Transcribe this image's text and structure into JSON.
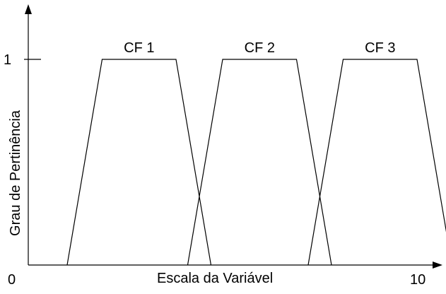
{
  "chart_data": {
    "type": "line",
    "xlabel": "Escala da Variável",
    "ylabel": "Grau de Pertinência",
    "x_min_label": "0",
    "x_max_label": "10",
    "y_tick_label": "1",
    "xlim": [
      0,
      10
    ],
    "ylim": [
      0,
      1
    ],
    "grid": false,
    "colors": {
      "lines": "#000000",
      "background": "#ffffff"
    },
    "series": [
      {
        "name": "CF 1",
        "points": [
          {
            "x": 1.0,
            "y": 0
          },
          {
            "x": 1.9,
            "y": 1
          },
          {
            "x": 3.8,
            "y": 1
          },
          {
            "x": 4.7,
            "y": 0
          }
        ]
      },
      {
        "name": "CF 2",
        "points": [
          {
            "x": 4.1,
            "y": 0
          },
          {
            "x": 5.0,
            "y": 1
          },
          {
            "x": 6.9,
            "y": 1
          },
          {
            "x": 7.8,
            "y": 0
          }
        ]
      },
      {
        "name": "CF 3",
        "points": [
          {
            "x": 7.2,
            "y": 0
          },
          {
            "x": 8.1,
            "y": 1
          },
          {
            "x": 10.0,
            "y": 1
          },
          {
            "x": 10.9,
            "y": 0
          }
        ]
      }
    ]
  }
}
